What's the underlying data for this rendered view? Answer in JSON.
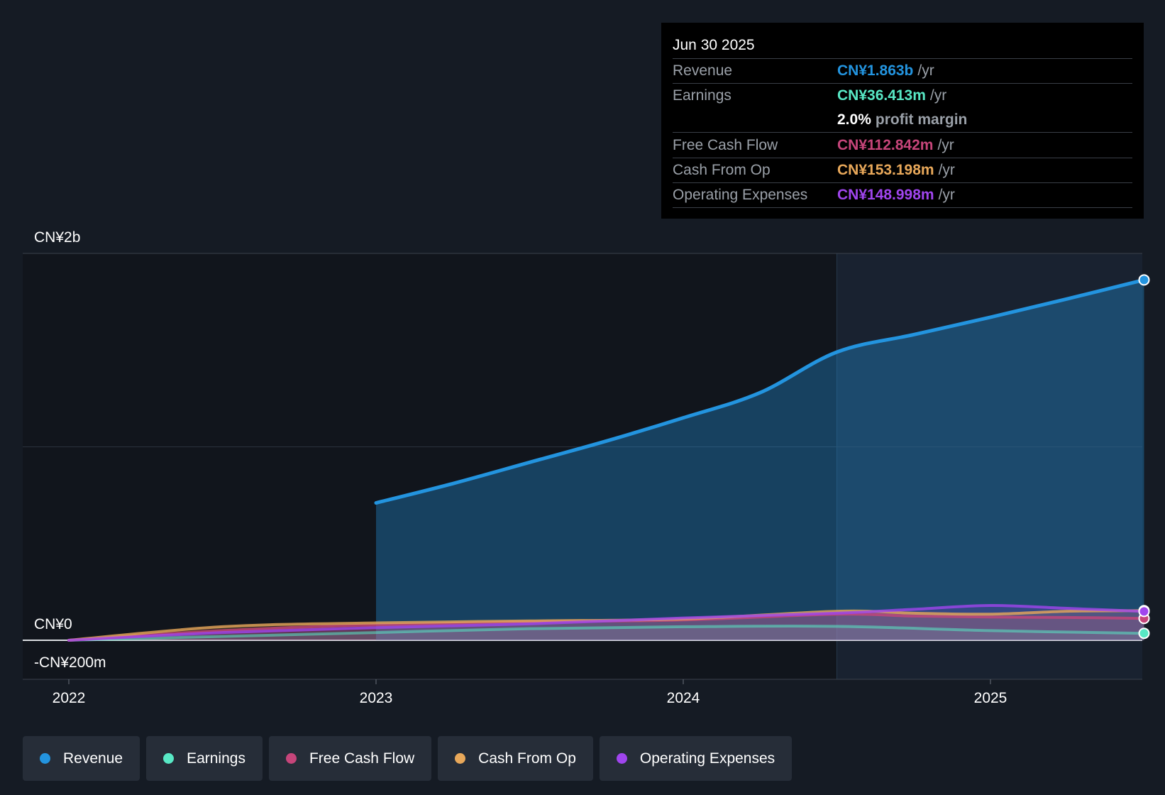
{
  "colors": {
    "background": "#151b24",
    "revenue": "#2394df",
    "earnings": "#58e8c5",
    "free_cash_flow": "#c6457a",
    "cash_from_op": "#e8a85a",
    "operating_expenses": "#a045ee",
    "grid": "#2b323c"
  },
  "tooltip": {
    "date": "Jun 30 2025",
    "revenue_label": "Revenue",
    "revenue_value": "CN¥1.863b",
    "revenue_unit": "/yr",
    "earnings_label": "Earnings",
    "earnings_value": "CN¥36.413m",
    "earnings_unit": "/yr",
    "margin_value": "2.0%",
    "margin_label": "profit margin",
    "fcf_label": "Free Cash Flow",
    "fcf_value": "CN¥112.842m",
    "fcf_unit": "/yr",
    "cfo_label": "Cash From Op",
    "cfo_value": "CN¥153.198m",
    "cfo_unit": "/yr",
    "opex_label": "Operating Expenses",
    "opex_value": "CN¥148.998m",
    "opex_unit": "/yr"
  },
  "legend": [
    {
      "label": "Revenue",
      "color": "#2394df"
    },
    {
      "label": "Earnings",
      "color": "#58e8c5"
    },
    {
      "label": "Free Cash Flow",
      "color": "#c6457a"
    },
    {
      "label": "Cash From Op",
      "color": "#e8a85a"
    },
    {
      "label": "Operating Expenses",
      "color": "#a045ee"
    }
  ],
  "chart_data": {
    "type": "area",
    "title": "",
    "xlabel": "",
    "ylabel": "",
    "xlim": [
      2022.0,
      2025.5
    ],
    "ylim": [
      -200,
      2000
    ],
    "y_tick_labels": [
      {
        "value": 2000,
        "label": "CN¥2b"
      },
      {
        "value": 0,
        "label": "CN¥0"
      },
      {
        "value": -200,
        "label": "-CN¥200m"
      }
    ],
    "x_ticks": [
      {
        "value": 2022,
        "label": "2022"
      },
      {
        "value": 2023,
        "label": "2023"
      },
      {
        "value": 2024,
        "label": "2024"
      },
      {
        "value": 2025,
        "label": "2025"
      }
    ],
    "forecast_start": 2024.5,
    "grid": true,
    "units": "CN¥ millions",
    "series": [
      {
        "name": "Revenue",
        "color": "#2394df",
        "x": [
          2023.0,
          2023.25,
          2023.5,
          2023.75,
          2024.0,
          2024.25,
          2024.5,
          2024.75,
          2025.0,
          2025.25,
          2025.5
        ],
        "y": [
          710,
          810,
          920,
          1030,
          1150,
          1280,
          1490,
          1580,
          1670,
          1765,
          1863
        ]
      },
      {
        "name": "Earnings",
        "color": "#58e8c5",
        "x": [
          2022.0,
          2022.5,
          2023.0,
          2023.5,
          2024.0,
          2024.5,
          2025.0,
          2025.5
        ],
        "y": [
          0,
          20,
          40,
          60,
          70,
          72,
          50,
          36
        ]
      },
      {
        "name": "Free Cash Flow",
        "color": "#c6457a",
        "x": [
          2022.0,
          2022.5,
          2023.0,
          2023.5,
          2024.0,
          2024.5,
          2024.75,
          2025.0,
          2025.25,
          2025.5
        ],
        "y": [
          0,
          50,
          80,
          95,
          105,
          135,
          125,
          120,
          118,
          113
        ]
      },
      {
        "name": "Cash From Op",
        "color": "#e8a85a",
        "x": [
          2022.0,
          2022.5,
          2023.0,
          2023.5,
          2024.0,
          2024.5,
          2024.75,
          2025.0,
          2025.25,
          2025.5
        ],
        "y": [
          0,
          70,
          90,
          100,
          110,
          150,
          140,
          135,
          150,
          153
        ]
      },
      {
        "name": "Operating Expenses",
        "color": "#a045ee",
        "x": [
          2022.0,
          2022.5,
          2023.0,
          2023.5,
          2024.0,
          2024.5,
          2024.75,
          2025.0,
          2025.25,
          2025.5
        ],
        "y": [
          0,
          40,
          65,
          85,
          115,
          140,
          160,
          180,
          165,
          149
        ]
      }
    ]
  }
}
